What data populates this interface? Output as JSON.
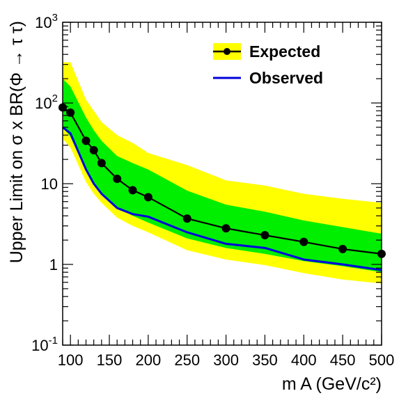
{
  "chart_data": {
    "type": "line",
    "title": "",
    "xlabel": "m A (GeV/c²)",
    "ylabel": "Upper Limit on σ x BR(Φ → τ τ)",
    "xlim": [
      90,
      500
    ],
    "ylim": [
      0.1,
      1000
    ],
    "y_scale": "log",
    "grid": false,
    "legend_position": "top-right",
    "x_ticks": [
      100,
      150,
      200,
      250,
      300,
      350,
      400,
      450,
      500
    ],
    "y_ticks": [
      {
        "value": 0.1,
        "base": "10",
        "exp": "-1"
      },
      {
        "value": 1,
        "base": "1",
        "exp": ""
      },
      {
        "value": 10,
        "base": "10",
        "exp": ""
      },
      {
        "value": 100,
        "base": "10",
        "exp": "2"
      },
      {
        "value": 1000,
        "base": "10",
        "exp": "3"
      }
    ],
    "x": [
      90,
      100,
      120,
      130,
      140,
      160,
      180,
      200,
      250,
      300,
      350,
      400,
      450,
      500
    ],
    "series": [
      {
        "name": "Expected",
        "values": [
          88,
          76,
          34,
          26,
          18,
          11.5,
          8.3,
          6.8,
          3.7,
          2.8,
          2.3,
          1.9,
          1.55,
          1.35
        ],
        "color": "#000000",
        "markers": true
      },
      {
        "name": "Observed",
        "values": [
          50,
          42,
          15,
          10,
          7.5,
          5.0,
          4.2,
          3.9,
          2.5,
          1.8,
          1.6,
          1.15,
          1.0,
          0.85
        ],
        "color": "#0000dd",
        "markers": false
      }
    ],
    "bands": [
      {
        "sigma": 2,
        "color": "#ffff00",
        "upper": [
          320,
          320,
          110,
          80,
          58,
          40,
          32,
          24,
          17,
          11,
          9.5,
          7.5,
          6.5,
          5.8
        ],
        "lower": [
          36,
          28,
          10.5,
          7.5,
          5.8,
          3.8,
          3.0,
          2.5,
          1.5,
          1.15,
          0.98,
          0.78,
          0.65,
          0.58
        ]
      },
      {
        "sigma": 1,
        "color": "#00ee00",
        "upper": [
          200,
          160,
          66,
          46,
          34,
          22,
          18,
          15,
          8.2,
          5.5,
          4.5,
          3.5,
          2.9,
          2.4
        ],
        "lower": [
          50,
          38,
          14.5,
          10.5,
          7.5,
          5.2,
          4.0,
          3.3,
          2.1,
          1.6,
          1.35,
          1.1,
          0.95,
          0.8
        ]
      }
    ],
    "colors": {
      "band_2sigma": "#ffff00",
      "band_1sigma": "#00ee00",
      "expected": "#000000",
      "observed": "#0000dd"
    }
  }
}
